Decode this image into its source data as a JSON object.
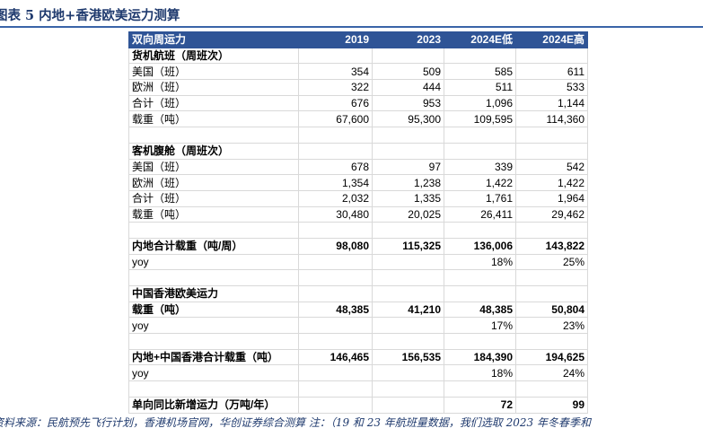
{
  "title": "图表 5   内地+香港欧美运力测算",
  "header": {
    "label": "双向周运力",
    "cols": [
      "2019",
      "2023",
      "2024E低",
      "2024E高"
    ]
  },
  "rows": [
    {
      "label": "货机航班（周班次）",
      "bold": true,
      "values": [
        "",
        "",
        "",
        ""
      ]
    },
    {
      "label": "美国（班）",
      "bold": false,
      "values": [
        "354",
        "509",
        "585",
        "611"
      ]
    },
    {
      "label": "欧洲（班）",
      "bold": false,
      "values": [
        "322",
        "444",
        "511",
        "533"
      ]
    },
    {
      "label": "合计（班）",
      "bold": false,
      "values": [
        "676",
        "953",
        "1,096",
        "1,144"
      ]
    },
    {
      "label": "载重（吨）",
      "bold": false,
      "values": [
        "67,600",
        "95,300",
        "109,595",
        "114,360"
      ]
    },
    {
      "label": "",
      "bold": false,
      "values": [
        "",
        "",
        "",
        ""
      ]
    },
    {
      "label": "客机腹舱（周班次）",
      "bold": true,
      "values": [
        "",
        "",
        "",
        ""
      ]
    },
    {
      "label": "美国（班）",
      "bold": false,
      "values": [
        "678",
        "97",
        "339",
        "542"
      ]
    },
    {
      "label": "欧洲（班）",
      "bold": false,
      "values": [
        "1,354",
        "1,238",
        "1,422",
        "1,422"
      ]
    },
    {
      "label": "合计（班）",
      "bold": false,
      "values": [
        "2,032",
        "1,335",
        "1,761",
        "1,964"
      ]
    },
    {
      "label": "载重（吨）",
      "bold": false,
      "values": [
        "30,480",
        "20,025",
        "26,411",
        "29,462"
      ]
    },
    {
      "label": "",
      "bold": false,
      "values": [
        "",
        "",
        "",
        ""
      ]
    },
    {
      "label": "内地合计载重（吨/周）",
      "bold": true,
      "values": [
        "98,080",
        "115,325",
        "136,006",
        "143,822"
      ]
    },
    {
      "label": "yoy",
      "bold": false,
      "values": [
        "",
        "",
        "18%",
        "25%"
      ]
    },
    {
      "label": "",
      "bold": false,
      "values": [
        "",
        "",
        "",
        ""
      ]
    },
    {
      "label": "中国香港欧美运力",
      "bold": true,
      "values": [
        "",
        "",
        "",
        ""
      ]
    },
    {
      "label": "载重（吨）",
      "bold": true,
      "values": [
        "48,385",
        "41,210",
        "48,385",
        "50,804"
      ]
    },
    {
      "label": "yoy",
      "bold": false,
      "values": [
        "",
        "",
        "17%",
        "23%"
      ]
    },
    {
      "label": "",
      "bold": false,
      "values": [
        "",
        "",
        "",
        ""
      ]
    },
    {
      "label": "内地+中国香港合计载重（吨）",
      "bold": true,
      "values": [
        "146,465",
        "156,535",
        "184,390",
        "194,625"
      ]
    },
    {
      "label": "yoy",
      "bold": false,
      "values": [
        "",
        "",
        "18%",
        "24%"
      ]
    },
    {
      "label": "",
      "bold": false,
      "values": [
        "",
        "",
        "",
        ""
      ]
    },
    {
      "label": "单向同比新增运力（万吨/年）",
      "bold": true,
      "values": [
        "",
        "",
        "72",
        "99"
      ]
    }
  ],
  "footer": "资料来源：民航预先飞行计划，香港机场官网，华创证券综合测算   注：（19 和 23 年航班量数据，我们选取 2023 年冬春季和"
}
